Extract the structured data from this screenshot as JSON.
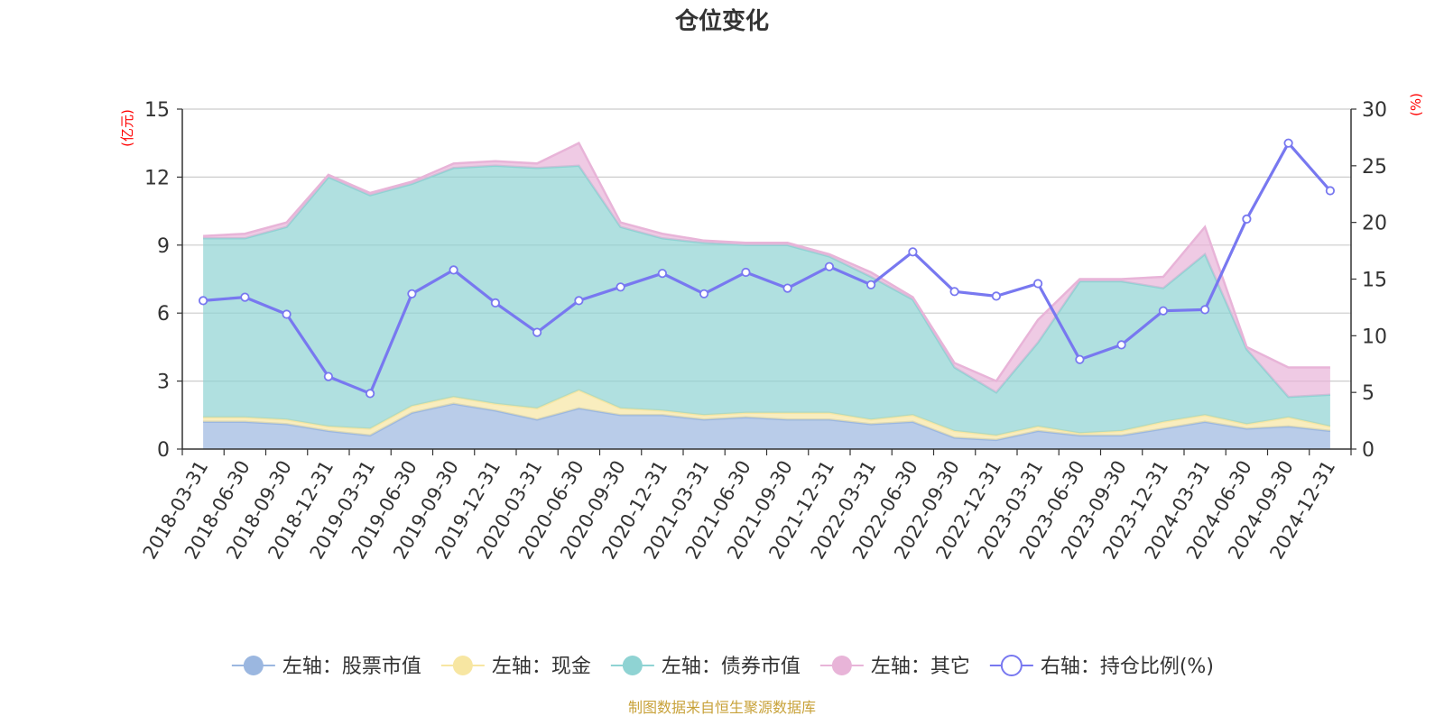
{
  "chart_data": {
    "type": "area",
    "title": "仓位变化",
    "left_axis": {
      "unit_label": "(亿元)",
      "ylim": [
        0,
        15
      ],
      "ticks": [
        "0",
        "3",
        "6",
        "9",
        "12",
        "15"
      ]
    },
    "right_axis": {
      "unit_label": "(%)",
      "ylim": [
        0,
        30
      ],
      "ticks": [
        "0",
        "5",
        "10",
        "15",
        "20",
        "25",
        "30"
      ]
    },
    "stacked": true,
    "grid": true,
    "legend_position": "bottom",
    "categories": [
      "2018-03-31",
      "2018-06-30",
      "2018-09-30",
      "2018-12-31",
      "2019-03-31",
      "2019-06-30",
      "2019-09-30",
      "2019-12-31",
      "2020-03-31",
      "2020-06-30",
      "2020-09-30",
      "2020-12-31",
      "2021-03-31",
      "2021-06-30",
      "2021-09-30",
      "2021-12-31",
      "2022-03-31",
      "2022-06-30",
      "2022-09-30",
      "2022-12-31",
      "2023-03-31",
      "2023-06-30",
      "2023-09-30",
      "2023-12-31",
      "2024-03-31",
      "2024-06-30",
      "2024-09-30",
      "2024-12-31"
    ],
    "series": [
      {
        "name": "左轴：股票市值",
        "axis": "left",
        "kind": "area",
        "color": "#9bb7e0",
        "values": [
          1.2,
          1.2,
          1.1,
          0.8,
          0.6,
          1.6,
          2.0,
          1.7,
          1.3,
          1.8,
          1.5,
          1.5,
          1.3,
          1.4,
          1.3,
          1.3,
          1.1,
          1.2,
          0.5,
          0.4,
          0.8,
          0.6,
          0.6,
          0.9,
          1.2,
          0.9,
          1.0,
          0.8
        ]
      },
      {
        "name": "左轴：现金",
        "axis": "left",
        "kind": "area",
        "color": "#f7e6a2",
        "values": [
          0.2,
          0.2,
          0.2,
          0.2,
          0.3,
          0.3,
          0.3,
          0.3,
          0.5,
          0.8,
          0.3,
          0.2,
          0.2,
          0.2,
          0.3,
          0.3,
          0.2,
          0.3,
          0.3,
          0.2,
          0.2,
          0.1,
          0.2,
          0.3,
          0.3,
          0.2,
          0.4,
          0.2
        ]
      },
      {
        "name": "左轴：债券市值",
        "axis": "left",
        "kind": "area",
        "color": "#8fd3d3",
        "values": [
          7.9,
          7.9,
          8.5,
          11.0,
          10.3,
          9.8,
          10.1,
          10.5,
          10.6,
          9.9,
          8.0,
          7.6,
          7.6,
          7.4,
          7.4,
          6.9,
          6.3,
          5.1,
          2.8,
          1.9,
          3.7,
          6.7,
          6.6,
          5.9,
          7.1,
          3.3,
          0.9,
          1.4
        ]
      },
      {
        "name": "左轴：其它",
        "axis": "left",
        "kind": "area",
        "color": "#e8b4d8",
        "values": [
          0.1,
          0.2,
          0.2,
          0.1,
          0.1,
          0.1,
          0.2,
          0.2,
          0.2,
          1.0,
          0.2,
          0.2,
          0.1,
          0.1,
          0.1,
          0.1,
          0.2,
          0.1,
          0.2,
          0.5,
          1.0,
          0.1,
          0.1,
          0.5,
          1.2,
          0.1,
          1.3,
          1.2
        ]
      },
      {
        "name": "右轴：持仓比例(%)",
        "axis": "right",
        "kind": "line",
        "color": "#7878f0",
        "values": [
          13.1,
          13.4,
          11.9,
          6.4,
          4.9,
          13.7,
          15.8,
          12.9,
          10.3,
          13.1,
          14.3,
          15.5,
          13.7,
          15.6,
          14.2,
          16.1,
          14.5,
          17.4,
          13.9,
          13.5,
          14.6,
          7.9,
          9.2,
          12.2,
          12.3,
          20.3,
          27.0,
          22.8
        ]
      }
    ],
    "source_note": "制图数据来自恒生聚源数据库",
    "colors": {
      "axis": "#333333",
      "axis_title": "#ff0000",
      "grid": "#cccccc",
      "line_stroke": "#7878f0",
      "source_note": "#c8a23a"
    }
  }
}
